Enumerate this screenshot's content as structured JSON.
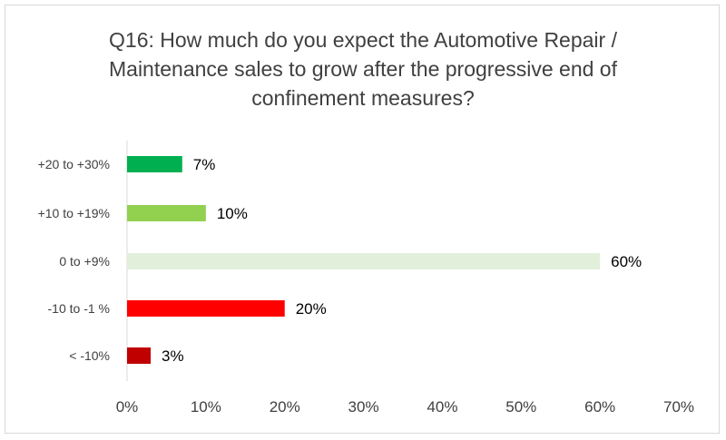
{
  "chart_data": {
    "type": "bar",
    "orientation": "horizontal",
    "title_lines": [
      "Q16: How much do you expect the Automotive Repair /",
      "Maintenance sales to grow after the progressive end of",
      "confinement measures?"
    ],
    "categories": [
      "+20 to +30%",
      "+10 to +19%",
      "0  to +9%",
      "-10 to -1 %",
      "<  -10%"
    ],
    "values": [
      7,
      10,
      60,
      20,
      3
    ],
    "data_labels": [
      "7%",
      "10%",
      "60%",
      "20%",
      "3%"
    ],
    "colors": [
      "#00b050",
      "#92d050",
      "#e2efda",
      "#ff0000",
      "#c00000"
    ],
    "xlim": [
      0,
      70
    ],
    "x_ticks": [
      0,
      10,
      20,
      30,
      40,
      50,
      60,
      70
    ],
    "x_tick_labels": [
      "0%",
      "10%",
      "20%",
      "30%",
      "40%",
      "50%",
      "60%",
      "70%"
    ],
    "grid": false,
    "legend": "none"
  }
}
